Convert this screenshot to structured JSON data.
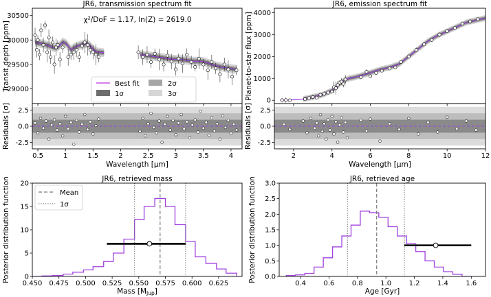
{
  "chart_data": [
    {
      "id": "transmission",
      "type": "line",
      "title": "JR6, transmission spectrum fit",
      "annotation": "χ²/DoF = 1.17, ln(Z) = 2619.0",
      "xlabel": "Wavelength [μm]",
      "ylabel": "Transit depth [ppm]",
      "xlim": [
        0.4,
        4.2
      ],
      "ylim": [
        28700,
        30650
      ],
      "yticks": [
        29000,
        29500,
        30000,
        30500
      ],
      "legend": {
        "placement": "lower-center",
        "entries": [
          "Best fit",
          "2σ",
          "1σ",
          "3σ"
        ]
      },
      "best_fit": [
        [
          0.45,
          29950
        ],
        [
          0.6,
          29920
        ],
        [
          0.7,
          29880
        ],
        [
          0.8,
          29840
        ],
        [
          0.88,
          29870
        ],
        [
          0.95,
          29960
        ],
        [
          1.02,
          29920
        ],
        [
          1.1,
          29800
        ],
        [
          1.18,
          29860
        ],
        [
          1.28,
          29900
        ],
        [
          1.38,
          29930
        ],
        [
          1.45,
          29880
        ],
        [
          1.55,
          29760
        ],
        [
          1.7,
          29740
        ],
        [
          2.35,
          29700
        ],
        [
          2.5,
          29680
        ],
        [
          2.7,
          29650
        ],
        [
          2.9,
          29610
        ],
        [
          3.1,
          29600
        ],
        [
          3.3,
          29570
        ],
        [
          3.5,
          29560
        ],
        [
          3.7,
          29480
        ],
        [
          3.9,
          29430
        ],
        [
          4.1,
          29400
        ]
      ],
      "observations": [
        [
          0.45,
          30100
        ],
        [
          0.48,
          29800
        ],
        [
          0.5,
          30000
        ],
        [
          0.53,
          29700
        ],
        [
          0.56,
          30200
        ],
        [
          0.6,
          29900
        ],
        [
          0.63,
          30300
        ],
        [
          0.67,
          29750
        ],
        [
          0.7,
          30050
        ],
        [
          0.73,
          29650
        ],
        [
          0.77,
          29950
        ],
        [
          0.8,
          29500
        ],
        [
          0.83,
          29850
        ],
        [
          0.86,
          29900
        ],
        [
          0.9,
          29600
        ],
        [
          0.95,
          29850
        ],
        [
          1.05,
          29650
        ],
        [
          1.1,
          29700
        ],
        [
          1.15,
          29750
        ],
        [
          1.2,
          29800
        ],
        [
          1.25,
          29650
        ],
        [
          1.3,
          29880
        ],
        [
          1.35,
          29950
        ],
        [
          1.4,
          29900
        ],
        [
          1.45,
          29800
        ],
        [
          1.5,
          29750
        ],
        [
          1.55,
          29700
        ],
        [
          1.6,
          29650
        ],
        [
          2.32,
          29750
        ],
        [
          2.4,
          29650
        ],
        [
          2.48,
          29700
        ],
        [
          2.55,
          29550
        ],
        [
          2.62,
          29720
        ],
        [
          2.7,
          29600
        ],
        [
          2.78,
          29500
        ],
        [
          2.85,
          29680
        ],
        [
          2.92,
          29560
        ],
        [
          3.0,
          29400
        ],
        [
          3.05,
          29620
        ],
        [
          3.12,
          29520
        ],
        [
          3.2,
          29700
        ],
        [
          3.28,
          29550
        ],
        [
          3.35,
          29450
        ],
        [
          3.42,
          29620
        ],
        [
          3.5,
          29500
        ],
        [
          3.58,
          29380
        ],
        [
          3.65,
          29550
        ],
        [
          3.72,
          29420
        ],
        [
          3.8,
          29300
        ],
        [
          3.88,
          29500
        ],
        [
          3.95,
          29400
        ],
        [
          4.02,
          29250
        ],
        [
          4.1,
          29380
        ]
      ],
      "residuals": {
        "ylabel": "Residuals [σ]",
        "ylim": [
          -3.5,
          3.5
        ],
        "yticks": [
          -2.5,
          0.0,
          2.5
        ],
        "xticks": [
          0.5,
          1.0,
          1.5,
          2.0,
          2.5,
          3.0,
          3.5,
          4.0
        ],
        "points": [
          [
            0.45,
            0.5
          ],
          [
            0.5,
            -1.0
          ],
          [
            0.55,
            1.2
          ],
          [
            0.6,
            -0.3
          ],
          [
            0.65,
            0.8
          ],
          [
            0.7,
            -2.0
          ],
          [
            0.75,
            0.2
          ],
          [
            0.8,
            1.0
          ],
          [
            0.85,
            -0.6
          ],
          [
            0.9,
            0.4
          ],
          [
            0.95,
            -1.5
          ],
          [
            1.0,
            1.5
          ],
          [
            1.05,
            -0.4
          ],
          [
            1.1,
            0.6
          ],
          [
            1.15,
            -2.8
          ],
          [
            1.2,
            0.9
          ],
          [
            1.25,
            -0.9
          ],
          [
            1.3,
            0.3
          ],
          [
            1.35,
            1.8
          ],
          [
            1.4,
            -0.5
          ],
          [
            1.45,
            0.7
          ],
          [
            1.5,
            -1.2
          ],
          [
            1.55,
            0.1
          ],
          [
            1.6,
            1.1
          ],
          [
            2.35,
            -0.8
          ],
          [
            2.4,
            1.2
          ],
          [
            2.45,
            -1.5
          ],
          [
            2.5,
            0.4
          ],
          [
            2.55,
            2.0
          ],
          [
            2.6,
            -0.2
          ],
          [
            2.65,
            -1.0
          ],
          [
            2.7,
            0.8
          ],
          [
            2.75,
            -2.5
          ],
          [
            2.8,
            0.3
          ],
          [
            2.85,
            1.5
          ],
          [
            2.9,
            -0.6
          ],
          [
            2.95,
            0.9
          ],
          [
            3.0,
            -1.3
          ],
          [
            3.05,
            0.5
          ],
          [
            3.1,
            1.8
          ],
          [
            3.15,
            -0.4
          ],
          [
            3.2,
            0.7
          ],
          [
            3.25,
            -1.8
          ],
          [
            3.3,
            0.2
          ],
          [
            3.35,
            1.0
          ],
          [
            3.4,
            -0.9
          ],
          [
            3.45,
            2.3
          ],
          [
            3.5,
            -0.3
          ],
          [
            3.55,
            0.6
          ],
          [
            3.6,
            -1.4
          ],
          [
            3.65,
            1.3
          ],
          [
            3.7,
            -0.7
          ],
          [
            3.75,
            0.4
          ],
          [
            3.8,
            -2.0
          ],
          [
            3.85,
            1.6
          ],
          [
            3.9,
            -0.2
          ],
          [
            3.95,
            0.9
          ],
          [
            4.0,
            -1.1
          ],
          [
            4.05,
            0.3
          ],
          [
            4.1,
            -0.6
          ]
        ]
      }
    },
    {
      "id": "emission",
      "type": "line",
      "title": "JR6, emission spectrum fit",
      "xlabel": "Wavelength [μm]",
      "ylabel": "Planet-to-star flux [ppm]",
      "xlim": [
        1,
        12
      ],
      "ylim": [
        -150,
        4200
      ],
      "yticks": [
        0,
        1000,
        2000,
        3000,
        4000
      ],
      "best_fit": [
        [
          1.3,
          0
        ],
        [
          2.2,
          30
        ],
        [
          2.5,
          60
        ],
        [
          3.0,
          150
        ],
        [
          3.5,
          250
        ],
        [
          4.0,
          450
        ],
        [
          4.3,
          650
        ],
        [
          4.6,
          900
        ],
        [
          4.9,
          1000
        ],
        [
          5.2,
          1050
        ],
        [
          5.8,
          1200
        ],
        [
          6.5,
          1400
        ],
        [
          7.0,
          1500
        ],
        [
          7.5,
          1650
        ],
        [
          8.0,
          2000
        ],
        [
          8.5,
          2350
        ],
        [
          9.0,
          2700
        ],
        [
          9.5,
          2950
        ],
        [
          10.0,
          3150
        ],
        [
          10.5,
          3350
        ],
        [
          11.0,
          3550
        ],
        [
          11.5,
          3650
        ],
        [
          12.0,
          3750
        ]
      ],
      "observations": [
        [
          1.4,
          0
        ],
        [
          1.6,
          10
        ],
        [
          1.8,
          0
        ],
        [
          2.6,
          50
        ],
        [
          2.8,
          100
        ],
        [
          3.0,
          150
        ],
        [
          3.2,
          120
        ],
        [
          3.4,
          250
        ],
        [
          3.6,
          300
        ],
        [
          3.8,
          350
        ],
        [
          4.0,
          400
        ],
        [
          4.1,
          600
        ],
        [
          4.2,
          550
        ],
        [
          4.3,
          700
        ],
        [
          4.4,
          800
        ],
        [
          4.5,
          850
        ],
        [
          4.6,
          750
        ],
        [
          4.7,
          950
        ],
        [
          5.5,
          1050
        ],
        [
          5.8,
          1300
        ],
        [
          6.0,
          1100
        ],
        [
          6.3,
          1250
        ],
        [
          6.6,
          1350
        ],
        [
          7.0,
          1450
        ],
        [
          7.3,
          1500
        ],
        [
          7.6,
          1750
        ],
        [
          8.0,
          2000
        ],
        [
          8.4,
          2300
        ],
        [
          8.8,
          2550
        ],
        [
          9.2,
          2750
        ],
        [
          9.6,
          3000
        ],
        [
          10.0,
          3150
        ],
        [
          10.4,
          3300
        ],
        [
          10.8,
          3500
        ],
        [
          11.2,
          3600
        ],
        [
          11.6,
          3700
        ]
      ],
      "residuals": {
        "ylabel": "Residuals [σ]",
        "ylim": [
          -3.5,
          3.5
        ],
        "yticks": [
          -2.5,
          0.0,
          2.5
        ],
        "xticks": [
          2,
          4,
          6,
          8,
          10,
          12
        ],
        "points": [
          [
            1.5,
            0.3
          ],
          [
            1.8,
            -0.5
          ],
          [
            2.5,
            0.8
          ],
          [
            2.7,
            -1.0
          ],
          [
            2.9,
            1.2
          ],
          [
            3.1,
            -0.3
          ],
          [
            3.2,
            0.5
          ],
          [
            3.3,
            -1.5
          ],
          [
            3.4,
            1.8
          ],
          [
            3.5,
            -0.8
          ],
          [
            3.6,
            0.4
          ],
          [
            3.7,
            -2.0
          ],
          [
            3.8,
            1.0
          ],
          [
            3.9,
            -0.6
          ],
          [
            4.0,
            1.5
          ],
          [
            4.1,
            -1.2
          ],
          [
            4.2,
            0.7
          ],
          [
            4.3,
            -2.5
          ],
          [
            4.4,
            0.2
          ],
          [
            4.5,
            1.3
          ],
          [
            4.6,
            -0.9
          ],
          [
            4.7,
            0.6
          ],
          [
            4.8,
            -1.8
          ],
          [
            5.5,
            0.9
          ],
          [
            5.8,
            -0.7
          ],
          [
            6.0,
            1.1
          ],
          [
            6.5,
            -2.3
          ],
          [
            7.0,
            0.4
          ],
          [
            7.5,
            -0.5
          ],
          [
            8.0,
            1.2
          ],
          [
            8.5,
            -1.2
          ],
          [
            9.0,
            0.6
          ],
          [
            9.5,
            -0.9
          ],
          [
            10.0,
            1.4
          ],
          [
            10.5,
            -0.4
          ],
          [
            11.0,
            0.8
          ],
          [
            11.5,
            -0.6
          ]
        ]
      }
    },
    {
      "id": "mass",
      "type": "histogram",
      "title": "JR6, retrieved mass",
      "xlabel": "Mass [M",
      "xlabel_sub": "Jup",
      "xlabel_end": "]",
      "ylabel": "Posterior distribution function",
      "xlim": [
        0.45,
        0.647
      ],
      "ylim": [
        0,
        20
      ],
      "xticks": [
        0.45,
        0.475,
        0.5,
        0.525,
        0.55,
        0.575,
        0.6,
        0.625
      ],
      "xtick_labels": [
        "0.450",
        "0.475",
        "0.500",
        "0.525",
        "0.550",
        "0.575",
        "0.600",
        "0.625"
      ],
      "yticks": [
        0,
        5,
        10,
        15,
        20
      ],
      "legend": {
        "placement": "top-left",
        "entries": [
          "Mean",
          "1σ"
        ]
      },
      "bin_edges": [
        0.45,
        0.459,
        0.469,
        0.479,
        0.488,
        0.498,
        0.507,
        0.517,
        0.526,
        0.536,
        0.546,
        0.555,
        0.565,
        0.575,
        0.584,
        0.594,
        0.603,
        0.613,
        0.623,
        0.632,
        0.642
      ],
      "values": [
        0,
        0.1,
        0.2,
        0.5,
        0.9,
        1.4,
        2.1,
        3.2,
        5.0,
        8.0,
        12.2,
        15.0,
        16.7,
        15.0,
        11.1,
        7.5,
        4.2,
        2.8,
        1.6,
        0.7
      ],
      "mean": 0.57,
      "sigma_lower": 0.546,
      "sigma_upper": 0.594,
      "measurement": {
        "value": 0.56,
        "lower": 0.52,
        "upper": 0.594,
        "pdf_level": 7
      }
    },
    {
      "id": "age",
      "type": "histogram",
      "title": "JR6, retrieved age",
      "xlabel": "Age [Gyr]",
      "ylabel": "Posterior distribution function",
      "xlim": [
        0.25,
        1.7
      ],
      "ylim": [
        0,
        3.0
      ],
      "xticks": [
        0.4,
        0.6,
        0.8,
        1.0,
        1.2,
        1.4,
        1.6
      ],
      "xtick_labels": [
        "0.4",
        "0.6",
        "0.8",
        "1.0",
        "1.2",
        "1.4",
        "1.6"
      ],
      "yticks": [
        0,
        0.5,
        1.0,
        1.5,
        2.0,
        2.5,
        3.0
      ],
      "ytick_labels": [
        "0.0",
        "0.5",
        "1.0",
        "1.5",
        "2.0",
        "2.5",
        "3.0"
      ],
      "bin_edges": [
        0.3,
        0.365,
        0.43,
        0.495,
        0.56,
        0.625,
        0.69,
        0.755,
        0.82,
        0.885,
        0.95,
        1.015,
        1.08,
        1.145,
        1.21,
        1.275,
        1.34,
        1.405,
        1.47,
        1.535,
        1.6
      ],
      "values": [
        0.03,
        0.05,
        0.1,
        0.3,
        0.6,
        0.95,
        1.3,
        1.65,
        2.1,
        2.05,
        1.9,
        1.6,
        1.3,
        1.05,
        0.8,
        0.5,
        0.3,
        0.15,
        0.07,
        0
      ],
      "mean": 0.935,
      "sigma_lower": 0.73,
      "sigma_upper": 1.13,
      "measurement": {
        "value": 1.35,
        "lower": 1.13,
        "upper": 1.6,
        "pdf_level": 1.0
      }
    }
  ]
}
